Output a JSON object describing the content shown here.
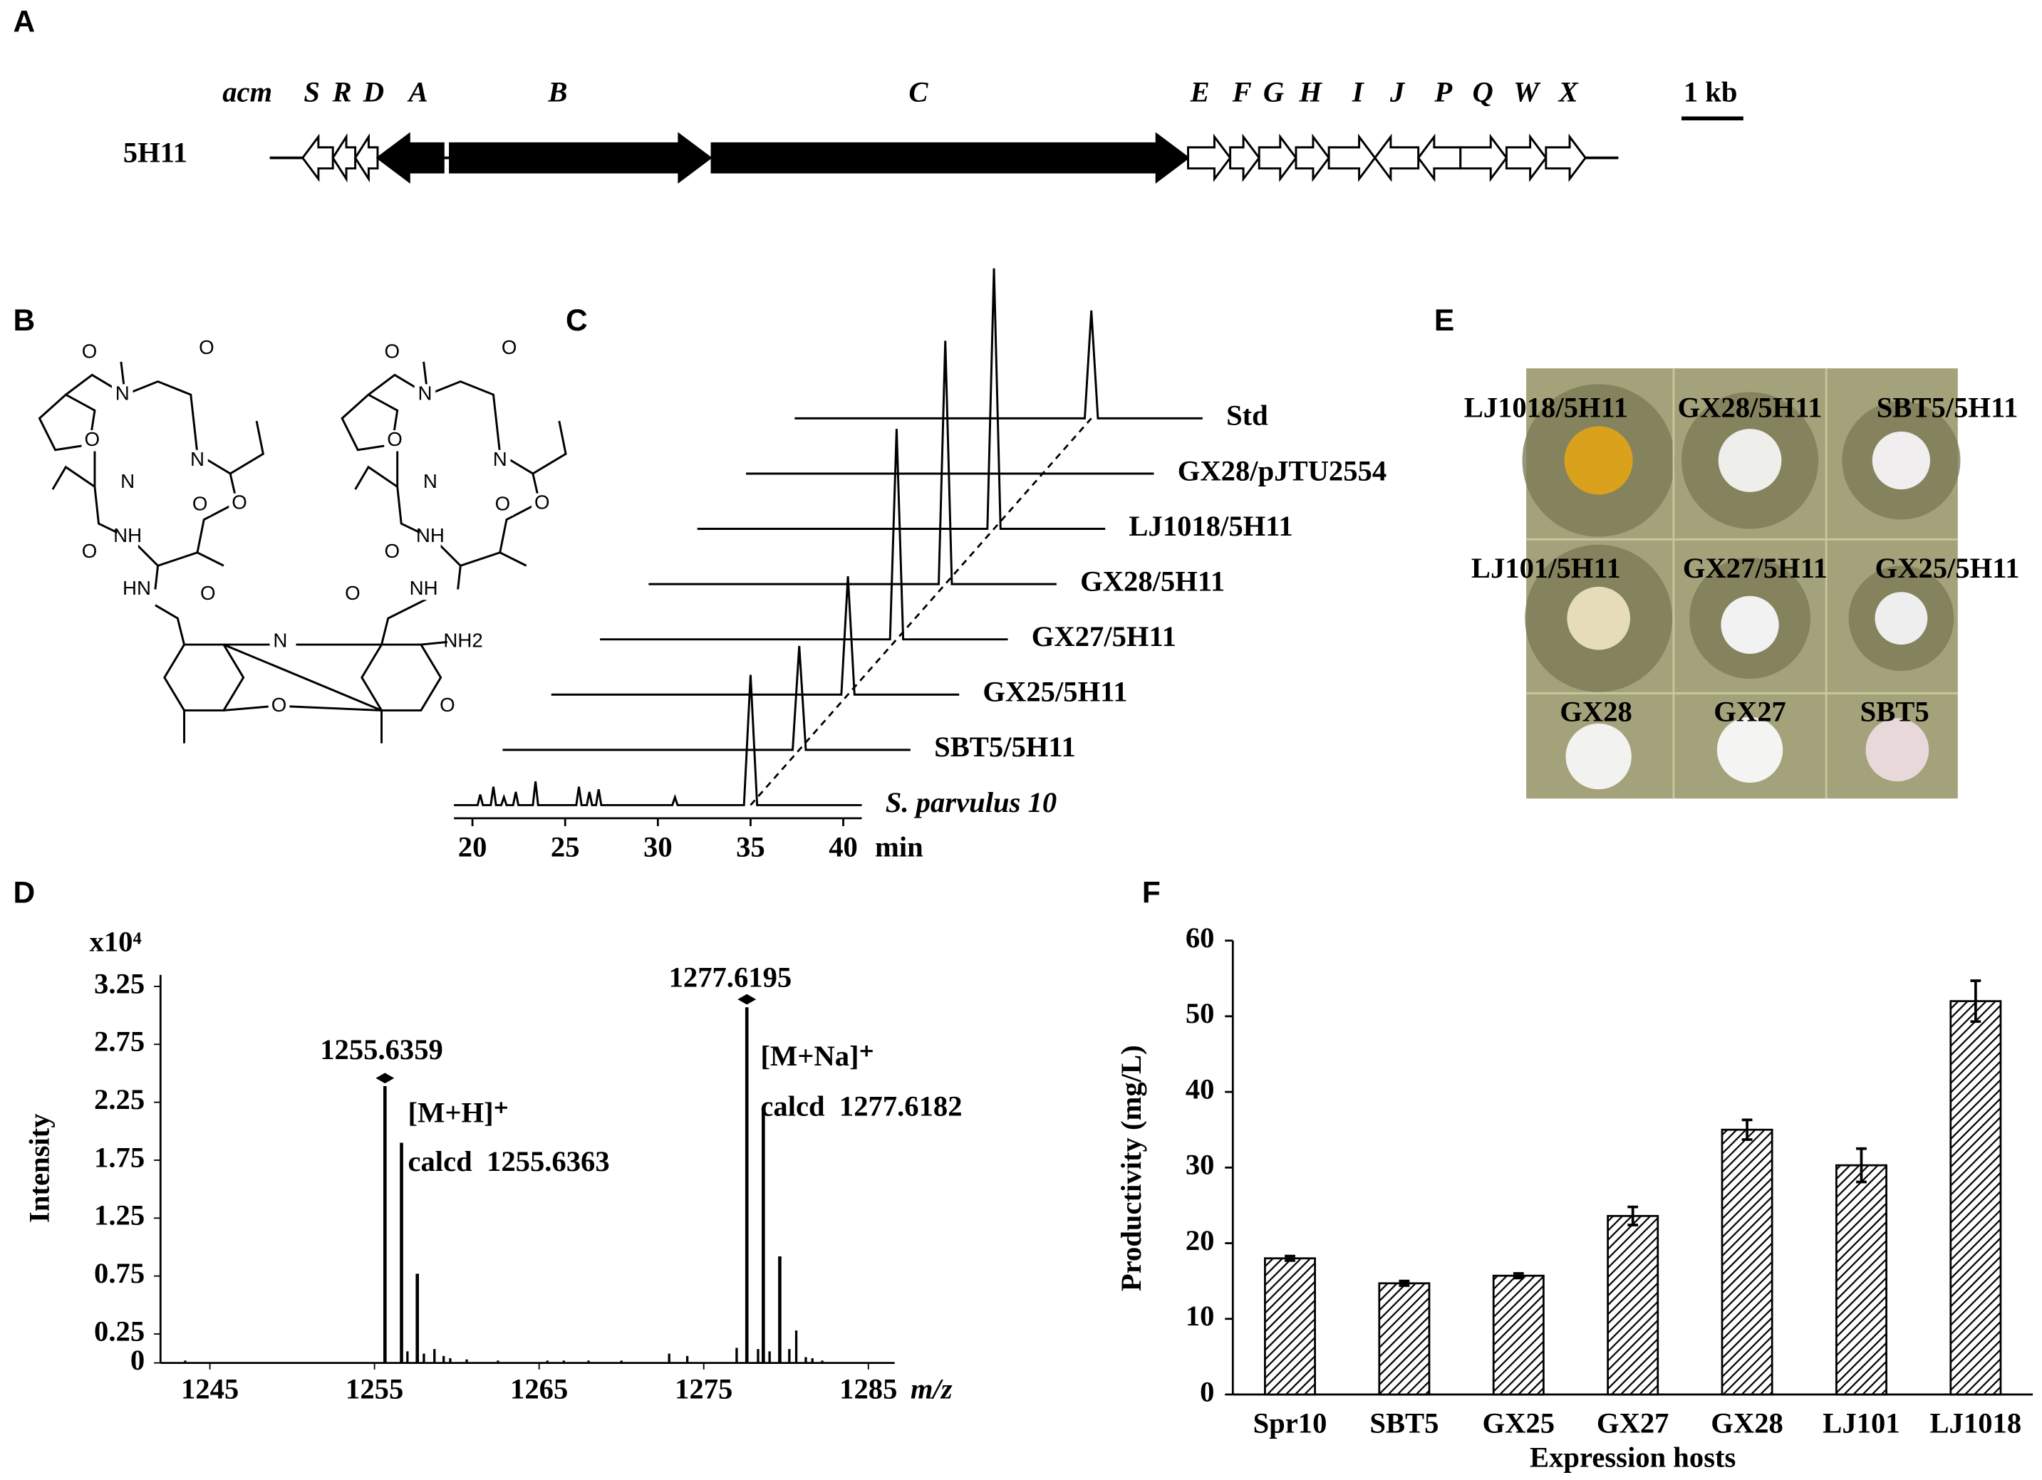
{
  "panel_labels": [
    "A",
    "B",
    "C",
    "D",
    "E",
    "F"
  ],
  "gene_cluster": {
    "prefix": "acm",
    "construct": "5H11",
    "scale": "1 kb",
    "genes": [
      "S",
      "R",
      "D",
      "A",
      "B",
      "C",
      "E",
      "F",
      "G",
      "H",
      "I",
      "J",
      "P",
      "Q",
      "W",
      "X"
    ]
  },
  "structure": {
    "atoms": [
      "O",
      "N",
      "O",
      "N",
      "N",
      "O",
      "O",
      "O",
      "NH",
      "O",
      "HN",
      "O",
      "O",
      "N",
      "O",
      "N",
      "N",
      "O",
      "O",
      "O",
      "NH",
      "O",
      "NH",
      "O",
      "N",
      "NH2",
      "O",
      "O"
    ]
  },
  "plate": {
    "labels": [
      "LJ1018/5H11",
      "GX28/5H11",
      "SBT5/5H11",
      "LJ101/5H11",
      "GX27/5H11",
      "GX25/5H11",
      "GX28",
      "GX27",
      "SBT5"
    ]
  },
  "chart_data": [
    {
      "type": "chromatogram",
      "x_label": "min",
      "xlim": [
        19,
        41
      ],
      "xticks": [
        20,
        25,
        30,
        35,
        40
      ],
      "series": [
        {
          "name": "S. parvulus 10",
          "peak_height": 99
        },
        {
          "name": "SBT5/5H11",
          "peak_height": 79
        },
        {
          "name": "GX25/5H11",
          "peak_height": 90
        },
        {
          "name": "GX27/5H11",
          "peak_height": 160
        },
        {
          "name": "GX28/5H11",
          "peak_height": 185
        },
        {
          "name": "LJ1018/5H11",
          "peak_height": 198
        },
        {
          "name": "GX28/pJTU2554",
          "peak_height": 0
        },
        {
          "name": "Std",
          "peak_height": 82
        }
      ]
    },
    {
      "type": "stem",
      "y_label": "Intensity",
      "y_unit": "x10⁴",
      "x_label": "m/z",
      "color": "#000000",
      "xlim": [
        1242,
        1286.6
      ],
      "xticks": [
        1245,
        1255,
        1265,
        1275,
        1285
      ],
      "ylim": [
        0,
        3.35
      ],
      "yticks": [
        0,
        0.25,
        0.75,
        1.25,
        1.75,
        2.25,
        2.75,
        3.25
      ],
      "x": [
        1243.5,
        1255.6359,
        1256.64,
        1257.0,
        1257.6,
        1258.0,
        1258.64,
        1259.2,
        1259.6,
        1260.6,
        1262.5,
        1265.5,
        1266.5,
        1268.0,
        1270.0,
        1272.9,
        1274.0,
        1277.0,
        1277.6195,
        1278.3,
        1278.62,
        1279.0,
        1279.62,
        1280.2,
        1280.62,
        1281.2,
        1281.6,
        1282.2
      ],
      "values": [
        0.02,
        2.39,
        1.9,
        0.1,
        0.77,
        0.08,
        0.12,
        0.06,
        0.04,
        0.03,
        0.02,
        0.02,
        0.02,
        0.02,
        0.02,
        0.08,
        0.06,
        0.13,
        3.07,
        0.12,
        2.19,
        0.1,
        0.92,
        0.12,
        0.28,
        0.05,
        0.04,
        0.02
      ],
      "annotations": [
        "1255.6359",
        "[M+H]⁺",
        "calcd  1255.6363",
        "1277.6195",
        "[M+Na]⁺",
        "calcd  1277.6182"
      ]
    },
    {
      "type": "bar",
      "x_label": "Expression hosts",
      "y_label": "Productivity (mg/L)",
      "color": "#8c8c8c",
      "categories": [
        "Spr10",
        "SBT5",
        "GX25",
        "GX27",
        "GX28",
        "LJ101",
        "LJ1018"
      ],
      "values": [
        18,
        14.7,
        15.7,
        23.6,
        35,
        30.3,
        52
      ],
      "errors": [
        0.3,
        0.3,
        0.3,
        1.2,
        1.3,
        2.2,
        2.7
      ],
      "ylim": [
        0,
        60
      ],
      "yticks": [
        0,
        10,
        20,
        30,
        40,
        50,
        60
      ]
    }
  ]
}
